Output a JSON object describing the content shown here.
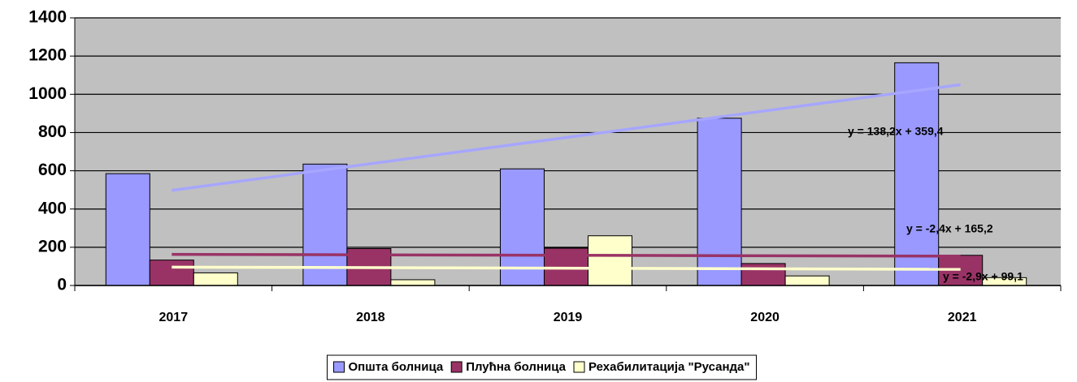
{
  "chart_data": {
    "type": "bar",
    "categories": [
      "2017",
      "2018",
      "2019",
      "2020",
      "2021"
    ],
    "series": [
      {
        "name": "Општа болница",
        "color": "#9999ff",
        "values": [
          585,
          635,
          610,
          875,
          1165
        ]
      },
      {
        "name": "Плућна болница",
        "color": "#993366",
        "values": [
          133,
          193,
          195,
          115,
          158
        ]
      },
      {
        "name": "Рехабилитација \"Русанда\"",
        "color": "#ffffcc",
        "values": [
          66,
          30,
          260,
          50,
          41
        ]
      }
    ],
    "trendlines": [
      {
        "label": "y = 138,2x + 359,4",
        "slope": 138.2,
        "intercept": 359.4,
        "color": "#a6a6ff"
      },
      {
        "label": "y = -2,4x + 165,2",
        "slope": -2.4,
        "intercept": 165.2,
        "color": "#993366"
      },
      {
        "label": "y = -2,9x + 99,1",
        "slope": -2.9,
        "intercept": 99.1,
        "color": "#ffffcc"
      }
    ],
    "ylim": [
      0,
      1400
    ],
    "yticks": [
      0,
      200,
      400,
      600,
      800,
      1000,
      1200,
      1400
    ],
    "grid": true,
    "legend": "bottom",
    "plot_background": "#c0c0c0"
  }
}
